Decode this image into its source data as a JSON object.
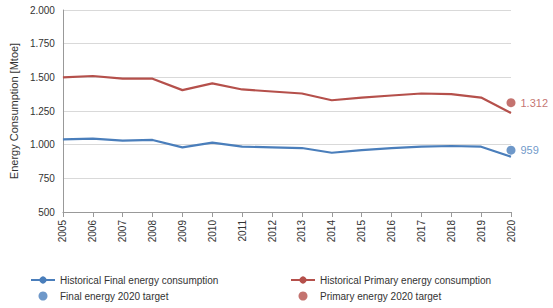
{
  "chart_data": {
    "type": "line",
    "y_label": "Energy Consumption [Mtoe]",
    "categories": [
      "2005",
      "2006",
      "2007",
      "2008",
      "2009",
      "2010",
      "2011",
      "2012",
      "2013",
      "2014",
      "2015",
      "2016",
      "2017",
      "2018",
      "2019",
      "2020"
    ],
    "series": [
      {
        "name": "Historical Final energy consumption",
        "type": "line",
        "marker": "none",
        "color": "#4a7ebb",
        "values": [
          1040,
          1045,
          1030,
          1035,
          980,
          1015,
          985,
          980,
          975,
          940,
          960,
          975,
          985,
          990,
          985,
          910
        ]
      },
      {
        "name": "Historical Primary energy consumption",
        "type": "line",
        "marker": "none",
        "color": "#b5504b",
        "values": [
          1500,
          1510,
          1490,
          1490,
          1405,
          1455,
          1410,
          1395,
          1380,
          1330,
          1350,
          1365,
          1380,
          1375,
          1350,
          1235
        ]
      },
      {
        "name": "Final energy 2020 target",
        "type": "scatter",
        "marker": "circle",
        "color": "#4a7ebb",
        "data_labels": true,
        "values": [
          null,
          null,
          null,
          null,
          null,
          null,
          null,
          null,
          null,
          null,
          null,
          null,
          null,
          null,
          null,
          959
        ],
        "value_labels": [
          null,
          null,
          null,
          null,
          null,
          null,
          null,
          null,
          null,
          null,
          null,
          null,
          null,
          null,
          null,
          "959"
        ]
      },
      {
        "name": "Primary energy 2020 target",
        "type": "scatter",
        "marker": "circle",
        "color": "#b5504b",
        "data_labels": true,
        "values": [
          null,
          null,
          null,
          null,
          null,
          null,
          null,
          null,
          null,
          null,
          null,
          null,
          null,
          null,
          null,
          1312
        ],
        "value_labels": [
          null,
          null,
          null,
          null,
          null,
          null,
          null,
          null,
          null,
          null,
          null,
          null,
          null,
          null,
          null,
          "1.312"
        ]
      }
    ],
    "ylim": [
      500,
      2000
    ],
    "yticks": [
      500,
      750,
      {
        "value": 1000,
        "label": "1.000"
      },
      {
        "value": 1250,
        "label": "1.250"
      },
      {
        "value": 1500,
        "label": "1.500"
      },
      {
        "value": 1750,
        "label": "1.750"
      },
      {
        "value": 2000,
        "label": "2.000"
      }
    ],
    "grid": true,
    "legend": "bottom"
  }
}
